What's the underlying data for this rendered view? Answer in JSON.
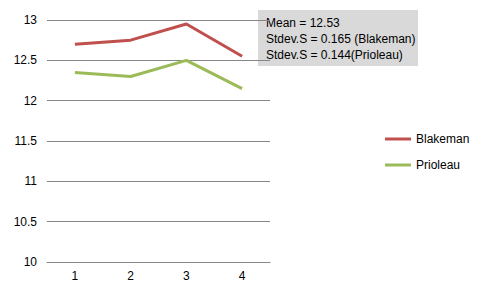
{
  "chart_data": {
    "type": "line",
    "categories": [
      "1",
      "2",
      "3",
      "4"
    ],
    "series": [
      {
        "name": "Blakeman",
        "color": "#c0504d",
        "values": [
          12.7,
          12.75,
          12.95,
          12.55
        ]
      },
      {
        "name": "Prioleau",
        "color": "#9bbb59",
        "values": [
          12.35,
          12.3,
          12.5,
          12.15
        ]
      }
    ],
    "ylim": [
      10,
      13
    ],
    "yticks": [
      10,
      10.5,
      11,
      11.5,
      12,
      12.5,
      13
    ],
    "grid": true,
    "legend": "right",
    "annotations": [
      "Mean = 12.53",
      "Stdev.S = 0.165 (Blakeman)",
      "Stdev.S = 0.144(Prioleau)"
    ]
  }
}
